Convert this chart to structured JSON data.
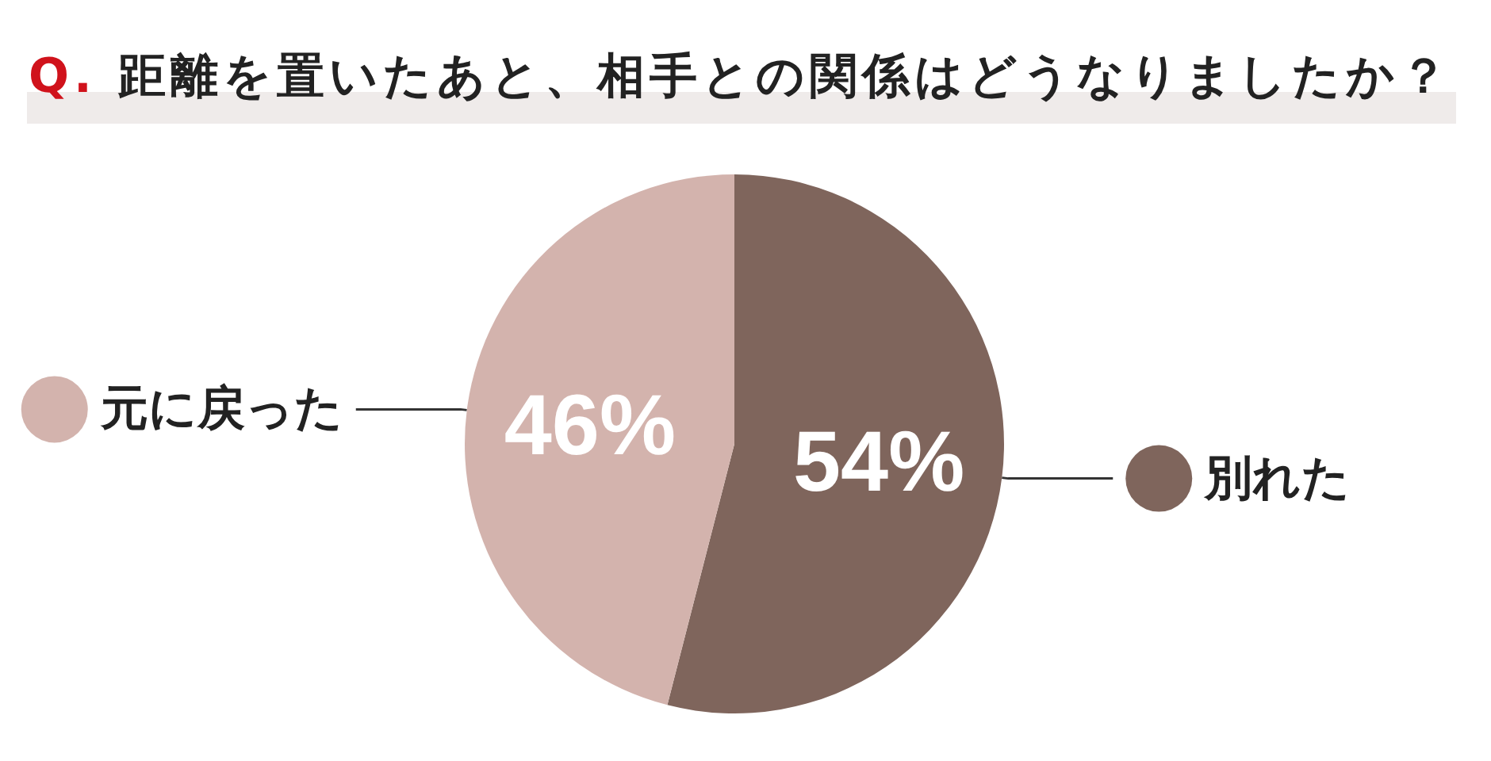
{
  "chart_data": {
    "type": "pie",
    "title": "Q. 距離を置いたあと、相手との関係はどうなりましたか？",
    "categories": [
      "別れた",
      "元に戻った"
    ],
    "values": [
      54,
      46
    ],
    "colors": [
      "#7f655c",
      "#d3b3ad"
    ],
    "value_labels": [
      "54%",
      "46%"
    ],
    "legend": "left"
  }
}
